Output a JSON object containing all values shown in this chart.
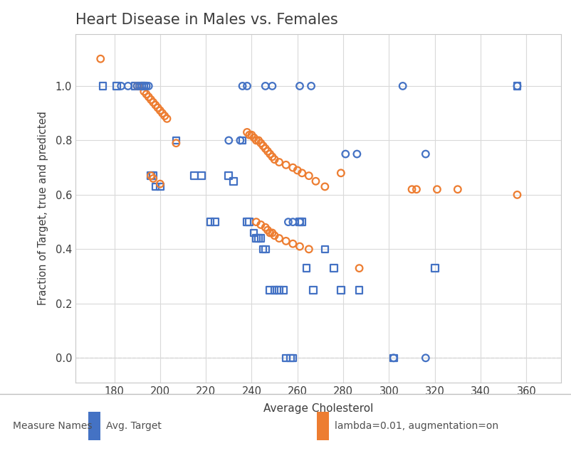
{
  "title": "Heart Disease in Males vs. Females",
  "xlabel": "Average Cholesterol",
  "ylabel": "Fraction of Target, true and predicted",
  "xlim": [
    163,
    375
  ],
  "ylim": [
    -0.09,
    1.19
  ],
  "xticks": [
    180,
    200,
    220,
    240,
    260,
    280,
    300,
    320,
    340,
    360
  ],
  "yticks": [
    0.0,
    0.2,
    0.4,
    0.6,
    0.8,
    1.0
  ],
  "blue_color": "#4472C4",
  "orange_color": "#ED7D31",
  "bg_color": "#FFFFFF",
  "plot_bg": "#FFFFFF",
  "grid_color": "#D9D9D9",
  "legend_bg": "#EBEBEB",
  "legend_header": "Measure Names",
  "legend_label1": "Avg. Target",
  "legend_label2": "lambda=0.01, augmentation=on",
  "blue_squares": [
    [
      175,
      1.0
    ],
    [
      181,
      1.0
    ],
    [
      189,
      1.0
    ],
    [
      192,
      1.0
    ],
    [
      193,
      1.0
    ],
    [
      196,
      0.67
    ],
    [
      197,
      0.67
    ],
    [
      198,
      0.63
    ],
    [
      200,
      0.63
    ],
    [
      207,
      0.8
    ],
    [
      215,
      0.67
    ],
    [
      218,
      0.67
    ],
    [
      222,
      0.5
    ],
    [
      224,
      0.5
    ],
    [
      230,
      0.67
    ],
    [
      232,
      0.65
    ],
    [
      236,
      0.8
    ],
    [
      238,
      0.5
    ],
    [
      239,
      0.5
    ],
    [
      241,
      0.46
    ],
    [
      242,
      0.44
    ],
    [
      243,
      0.44
    ],
    [
      244,
      0.44
    ],
    [
      245,
      0.4
    ],
    [
      246,
      0.4
    ],
    [
      248,
      0.25
    ],
    [
      250,
      0.25
    ],
    [
      251,
      0.25
    ],
    [
      252,
      0.25
    ],
    [
      254,
      0.25
    ],
    [
      255,
      0.0
    ],
    [
      257,
      0.0
    ],
    [
      258,
      0.0
    ],
    [
      261,
      0.5
    ],
    [
      262,
      0.5
    ],
    [
      264,
      0.33
    ],
    [
      267,
      0.25
    ],
    [
      272,
      0.4
    ],
    [
      276,
      0.33
    ],
    [
      279,
      0.25
    ],
    [
      287,
      0.25
    ],
    [
      302,
      0.0
    ],
    [
      320,
      0.33
    ],
    [
      356,
      1.0
    ]
  ],
  "orange_circles": [
    [
      174,
      1.1
    ],
    [
      190,
      1.0
    ],
    [
      191,
      1.0
    ],
    [
      193,
      0.98
    ],
    [
      194,
      0.97
    ],
    [
      195,
      0.96
    ],
    [
      196,
      0.95
    ],
    [
      197,
      0.94
    ],
    [
      198,
      0.93
    ],
    [
      199,
      0.92
    ],
    [
      200,
      0.91
    ],
    [
      201,
      0.9
    ],
    [
      202,
      0.89
    ],
    [
      203,
      0.88
    ],
    [
      196,
      0.67
    ],
    [
      197,
      0.66
    ],
    [
      200,
      0.64
    ],
    [
      207,
      0.79
    ],
    [
      238,
      0.83
    ],
    [
      239,
      0.82
    ],
    [
      240,
      0.82
    ],
    [
      241,
      0.81
    ],
    [
      242,
      0.8
    ],
    [
      243,
      0.8
    ],
    [
      244,
      0.79
    ],
    [
      245,
      0.78
    ],
    [
      246,
      0.77
    ],
    [
      247,
      0.76
    ],
    [
      248,
      0.75
    ],
    [
      249,
      0.74
    ],
    [
      250,
      0.73
    ],
    [
      252,
      0.72
    ],
    [
      255,
      0.71
    ],
    [
      258,
      0.7
    ],
    [
      260,
      0.69
    ],
    [
      262,
      0.68
    ],
    [
      265,
      0.67
    ],
    [
      268,
      0.65
    ],
    [
      272,
      0.63
    ],
    [
      279,
      0.68
    ],
    [
      242,
      0.5
    ],
    [
      244,
      0.49
    ],
    [
      246,
      0.48
    ],
    [
      247,
      0.47
    ],
    [
      248,
      0.46
    ],
    [
      249,
      0.46
    ],
    [
      250,
      0.45
    ],
    [
      252,
      0.44
    ],
    [
      255,
      0.43
    ],
    [
      258,
      0.42
    ],
    [
      261,
      0.41
    ],
    [
      265,
      0.4
    ],
    [
      287,
      0.33
    ],
    [
      310,
      0.62
    ],
    [
      312,
      0.62
    ],
    [
      321,
      0.62
    ],
    [
      330,
      0.62
    ],
    [
      356,
      0.6
    ]
  ],
  "blue_circles": [
    [
      183,
      1.0
    ],
    [
      186,
      1.0
    ],
    [
      190,
      1.0
    ],
    [
      191,
      1.0
    ],
    [
      192,
      1.0
    ],
    [
      194,
      1.0
    ],
    [
      195,
      1.0
    ],
    [
      236,
      1.0
    ],
    [
      238,
      1.0
    ],
    [
      246,
      1.0
    ],
    [
      249,
      1.0
    ],
    [
      261,
      1.0
    ],
    [
      266,
      1.0
    ],
    [
      306,
      1.0
    ],
    [
      356,
      1.0
    ],
    [
      230,
      0.8
    ],
    [
      235,
      0.8
    ],
    [
      256,
      0.5
    ],
    [
      258,
      0.5
    ],
    [
      261,
      0.5
    ],
    [
      281,
      0.75
    ],
    [
      286,
      0.75
    ],
    [
      316,
      0.75
    ],
    [
      302,
      0.0
    ],
    [
      316,
      0.0
    ]
  ]
}
